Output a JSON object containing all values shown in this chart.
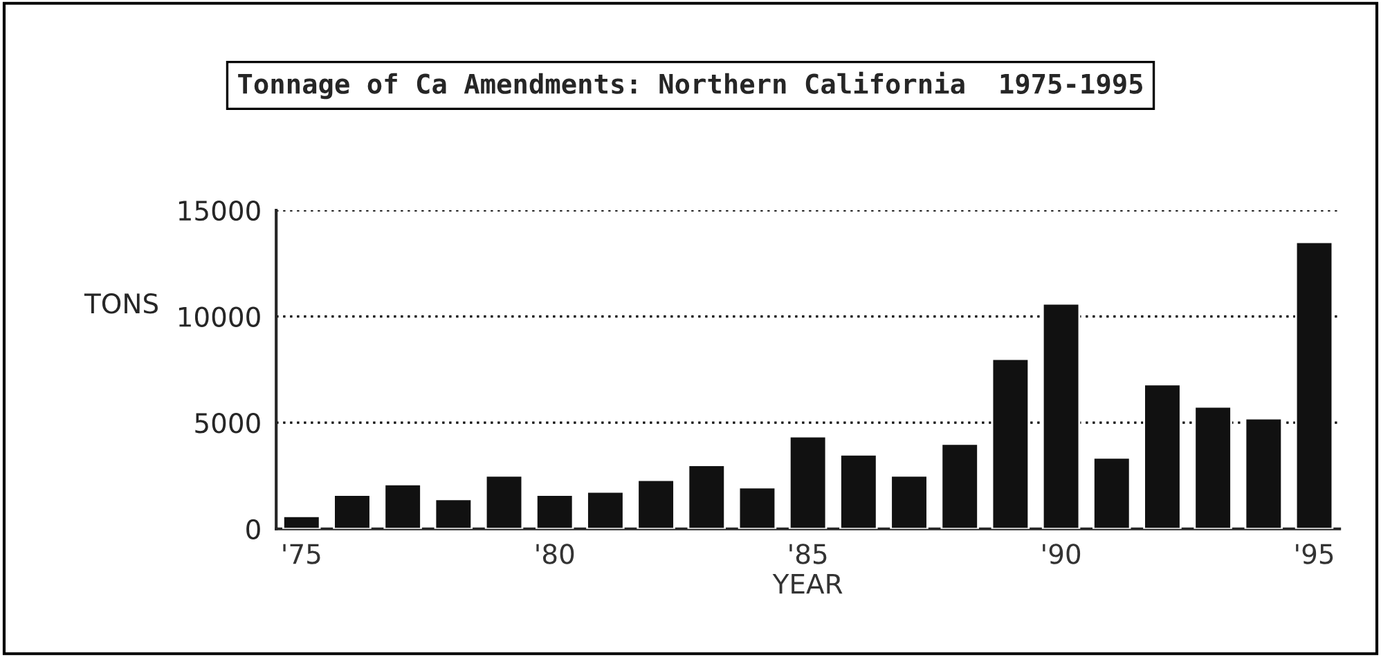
{
  "chart_data": {
    "type": "bar",
    "title": "Tonnage of Ca Amendments: Northern California  1975-1995",
    "xlabel": "YEAR",
    "ylabel": "TONS",
    "categories": [
      "'75",
      null,
      null,
      null,
      null,
      "'80",
      null,
      null,
      null,
      null,
      "'85",
      null,
      null,
      null,
      null,
      "'90",
      null,
      null,
      null,
      null,
      "'95"
    ],
    "values": [
      600,
      1600,
      2100,
      1400,
      2500,
      1600,
      1750,
      2300,
      3000,
      1950,
      4350,
      3500,
      2500,
      4000,
      8000,
      10600,
      3350,
      6800,
      5750,
      5200,
      13500
    ],
    "color": "#111111",
    "ylim": [
      0,
      15000
    ],
    "yticks": [
      0,
      5000,
      10000,
      15000
    ],
    "grid": "y"
  }
}
